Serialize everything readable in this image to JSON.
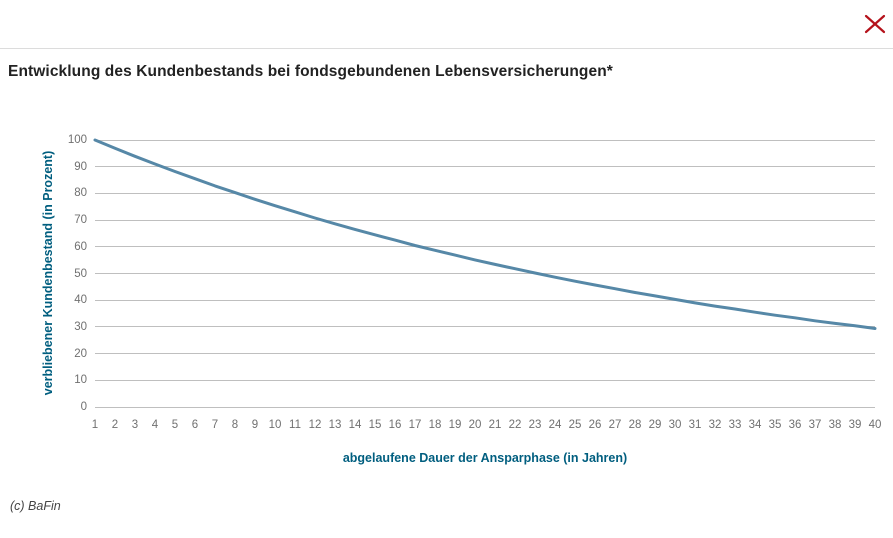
{
  "header": {
    "title": "Entwicklung des Kundenbestands bei fondsgebundenen Lebensversicherungen*"
  },
  "window": {
    "close_icon": "x-close-icon"
  },
  "footer": {
    "credit": "(c) BaFin"
  },
  "colors": {
    "line": "#5688a7",
    "grid": "#bfbfbf",
    "tick_text": "#707070",
    "axis_title": "#005e7f",
    "title_text": "#222222",
    "close_icon": "#b5121b",
    "divider": "#dcdcdc"
  },
  "chart_data": {
    "type": "line",
    "title": "Entwicklung des Kundenbestands bei fondsgebundenen Lebensversicherungen*",
    "series_name": "verbliebener Kundenbestand",
    "xlabel": "abgelaufene Dauer der Ansparphase (in Jahren)",
    "ylabel": "verbliebener Kundenbestand (in Prozent)",
    "x": [
      1,
      2,
      3,
      4,
      5,
      6,
      7,
      8,
      9,
      10,
      11,
      12,
      13,
      14,
      15,
      16,
      17,
      18,
      19,
      20,
      21,
      22,
      23,
      24,
      25,
      26,
      27,
      28,
      29,
      30,
      31,
      32,
      33,
      34,
      35,
      36,
      37,
      38,
      39,
      40
    ],
    "values": [
      100,
      96.9,
      93.9,
      91,
      88.2,
      85.5,
      82.8,
      80.3,
      77.8,
      75.4,
      73.1,
      70.8,
      68.6,
      66.5,
      64.5,
      62.5,
      60.5,
      58.7,
      56.9,
      55.1,
      53.4,
      51.8,
      50.2,
      48.6,
      47.1,
      45.7,
      44.3,
      42.9,
      41.6,
      40.3,
      39,
      37.8,
      36.7,
      35.5,
      34.4,
      33.4,
      32.3,
      31.3,
      30.4,
      29.4
    ],
    "xlim": [
      1,
      40
    ],
    "ylim": [
      0,
      100
    ],
    "yticks": [
      0,
      10,
      20,
      30,
      40,
      50,
      60,
      70,
      80,
      90,
      100
    ],
    "xticks": [
      1,
      2,
      3,
      4,
      5,
      6,
      7,
      8,
      9,
      10,
      11,
      12,
      13,
      14,
      15,
      16,
      17,
      18,
      19,
      20,
      21,
      22,
      23,
      24,
      25,
      26,
      27,
      28,
      29,
      30,
      31,
      32,
      33,
      34,
      35,
      36,
      37,
      38,
      39,
      40
    ],
    "grid": "horizontal",
    "legend": "none"
  }
}
